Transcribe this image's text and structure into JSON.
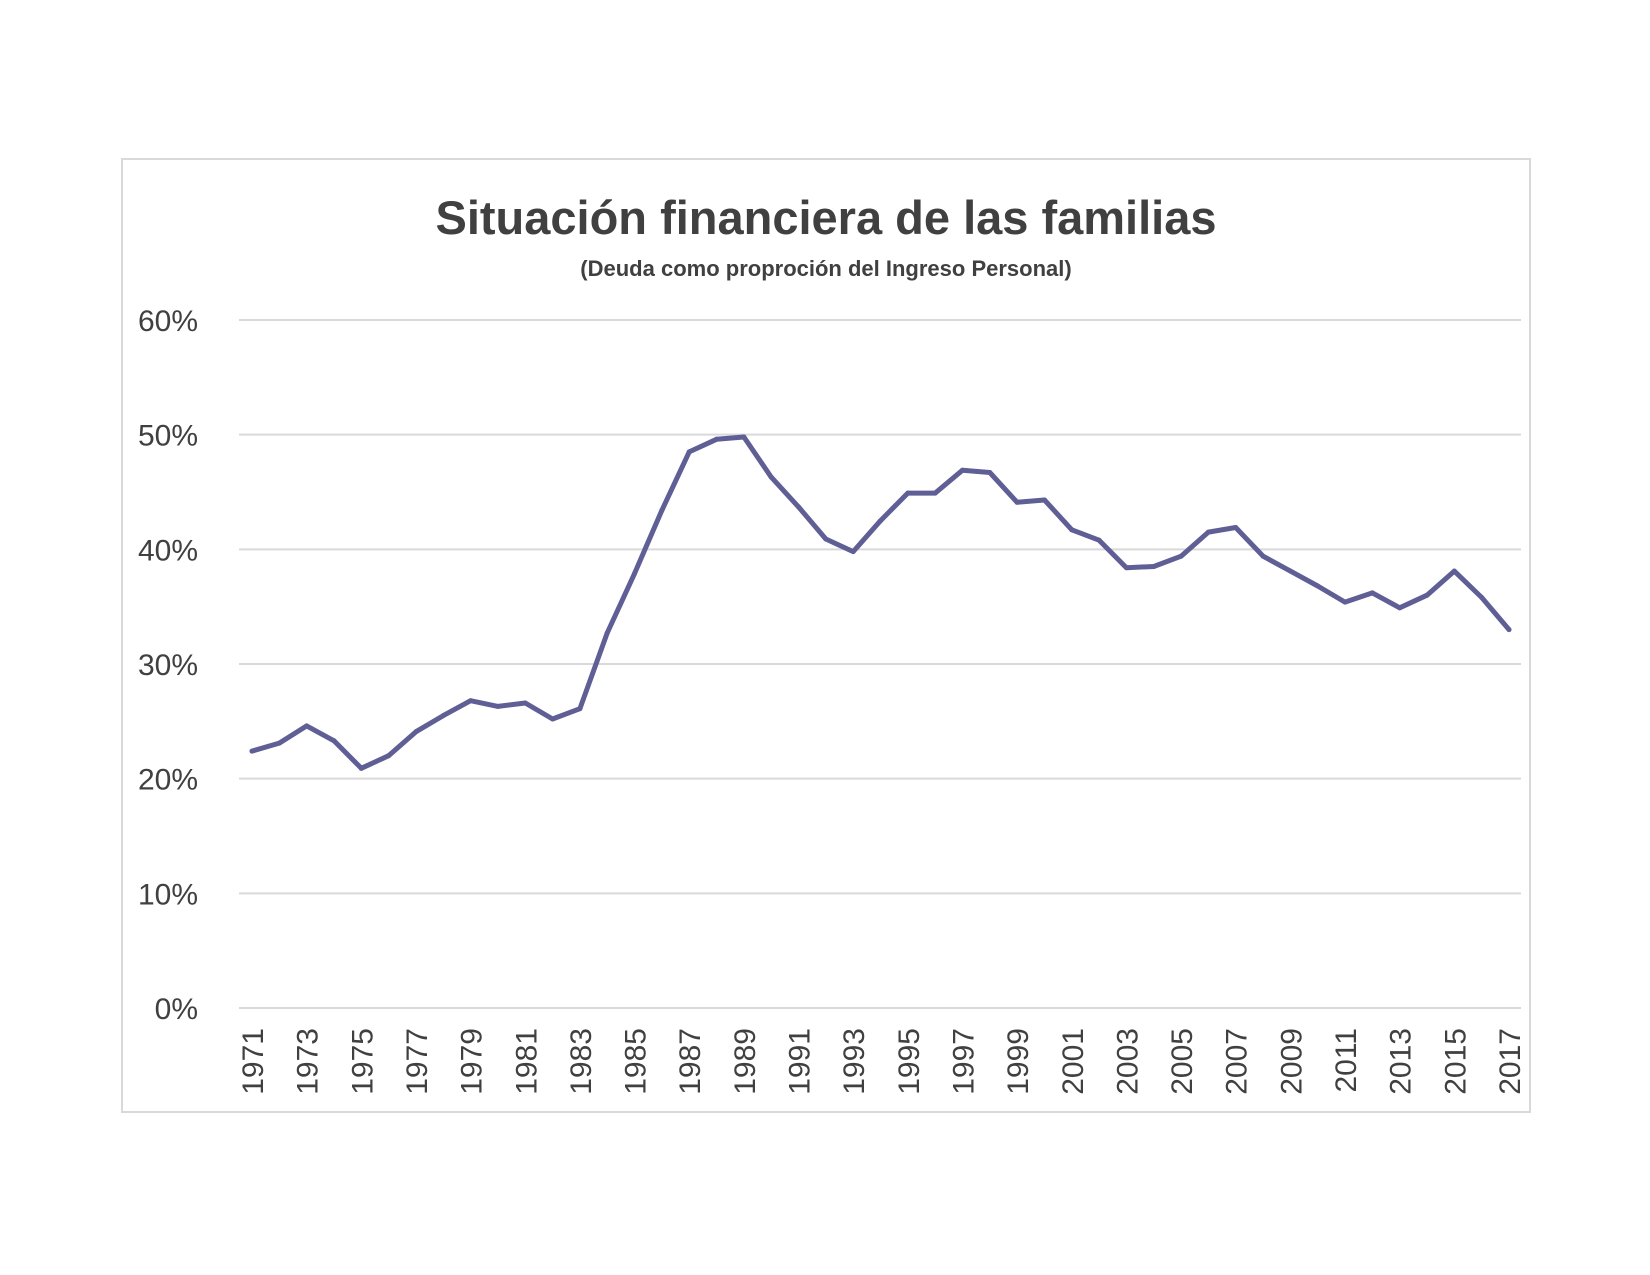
{
  "chart_data": {
    "type": "line",
    "title": "Situación financiera de las familias",
    "subtitle": "(Deuda como proproción del Ingreso Personal)",
    "xlabel": "",
    "ylabel": "",
    "ylim": [
      0,
      60
    ],
    "y_ticks": [
      "0%",
      "10%",
      "20%",
      "30%",
      "40%",
      "50%",
      "60%"
    ],
    "y_tick_values": [
      0,
      10,
      20,
      30,
      40,
      50,
      60
    ],
    "x_tick_labels": [
      "1971",
      "1973",
      "1975",
      "1977",
      "1979",
      "1981",
      "1983",
      "1985",
      "1987",
      "1989",
      "1991",
      "1993",
      "1995",
      "1997",
      "1999",
      "2001",
      "2003",
      "2005",
      "2007",
      "2009",
      "2011",
      "2013",
      "2015",
      "2017"
    ],
    "grid": true,
    "legend": "none",
    "series": [
      {
        "color": "#5f5f96",
        "x": [
          1971,
          1972,
          1973,
          1974,
          1975,
          1976,
          1977,
          1978,
          1979,
          1980,
          1981,
          1982,
          1983,
          1984,
          1985,
          1986,
          1987,
          1988,
          1989,
          1990,
          1991,
          1992,
          1993,
          1994,
          1995,
          1996,
          1997,
          1998,
          1999,
          2000,
          2001,
          2002,
          2003,
          2004,
          2005,
          2006,
          2007,
          2008,
          2009,
          2010,
          2011,
          2012,
          2013,
          2014,
          2015,
          2016,
          2017
        ],
        "values": [
          22.4,
          23.1,
          24.6,
          23.3,
          20.9,
          22.0,
          24.1,
          25.5,
          26.8,
          26.3,
          26.6,
          25.2,
          26.1,
          32.7,
          37.9,
          43.4,
          48.5,
          49.6,
          49.8,
          46.3,
          43.7,
          40.9,
          39.8,
          42.5,
          44.9,
          44.9,
          46.9,
          46.7,
          44.1,
          44.3,
          41.7,
          40.8,
          38.4,
          38.5,
          39.4,
          41.5,
          41.9,
          39.4,
          38.1,
          36.8,
          35.4,
          36.2,
          34.9,
          36.0,
          38.1,
          35.8,
          33.0
        ]
      }
    ]
  }
}
